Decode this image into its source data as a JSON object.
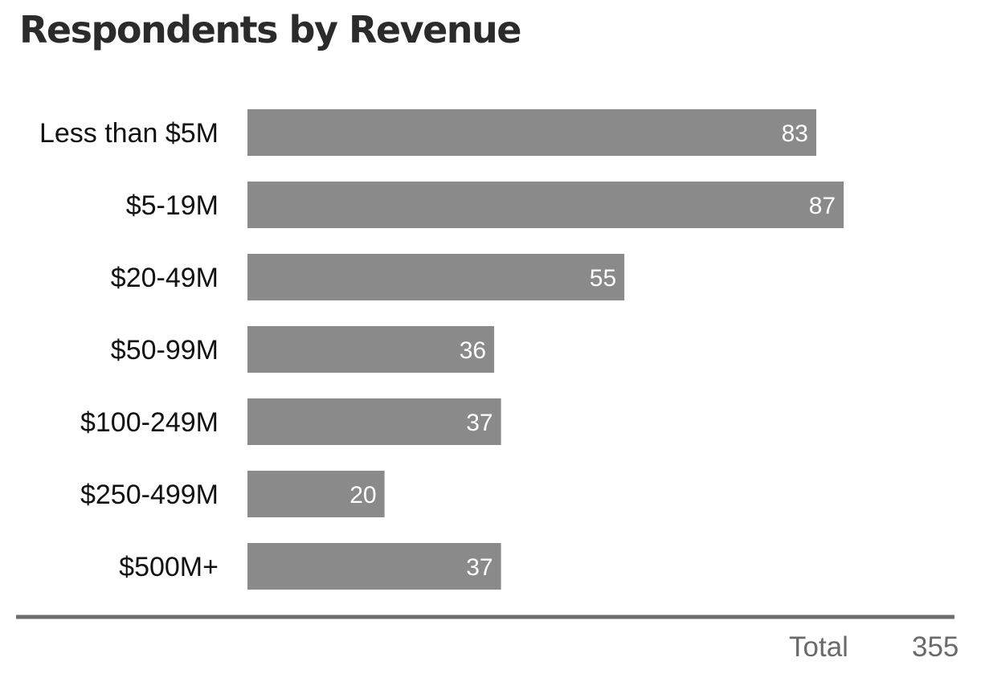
{
  "chart_data": {
    "type": "bar",
    "orientation": "horizontal",
    "title": "Respondents by Revenue",
    "categories": [
      "Less than $5M",
      "$5-19M",
      "$20-49M",
      "$50-99M",
      "$100-249M",
      "$250-499M",
      "$500M+"
    ],
    "values": [
      83,
      87,
      55,
      36,
      37,
      20,
      37
    ],
    "data_labels": [
      "83",
      "87",
      "55",
      "36",
      "37",
      "20",
      "37"
    ],
    "xlim": [
      0,
      100
    ],
    "grid": false,
    "legend": "none",
    "bar_color": "#8a8a8a",
    "total_label": "Total",
    "total_value": "355"
  }
}
